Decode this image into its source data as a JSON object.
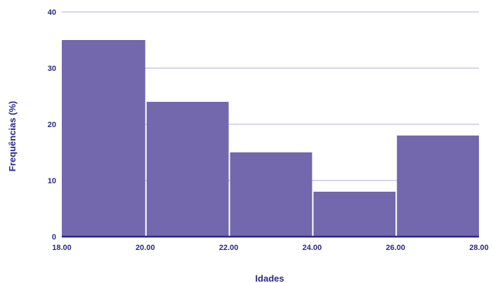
{
  "chart_data": {
    "type": "bar",
    "title": "",
    "xlabel": "Idades",
    "ylabel": "Frequências (%)",
    "bin_edges": [
      18.0,
      20.0,
      22.0,
      24.0,
      26.0,
      28.0
    ],
    "x_tick_labels": [
      "18.00",
      "20.00",
      "22.00",
      "24.00",
      "26.00",
      "28.00"
    ],
    "values": [
      35,
      24,
      15,
      8,
      18
    ],
    "y_ticks": [
      0,
      10,
      20,
      30,
      40
    ],
    "y_tick_labels": [
      "0",
      "10",
      "20",
      "30",
      "40"
    ],
    "ylim": [
      0,
      40
    ],
    "xlim": [
      18,
      28
    ],
    "grid": true,
    "legend": "none",
    "colors": {
      "bar": "#7367ad",
      "text": "#2b2785",
      "grid": "#c9c7e6",
      "axis": "#2b2785"
    }
  }
}
